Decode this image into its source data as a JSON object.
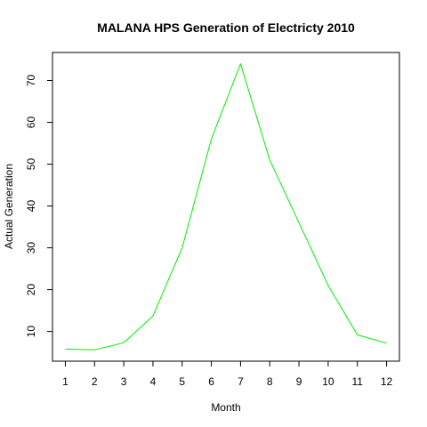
{
  "chart_data": {
    "type": "line",
    "title": "MALANA  HPS Generation of Electricty 2010",
    "xlabel": "Month",
    "ylabel": "Actual Generation",
    "x": [
      1,
      2,
      3,
      4,
      5,
      6,
      7,
      8,
      9,
      10,
      11,
      12
    ],
    "series": [
      {
        "values": [
          5.8,
          5.6,
          7.3,
          13.7,
          30.0,
          56.0,
          74.0,
          51.0,
          36.0,
          21.0,
          9.2,
          7.2
        ],
        "color": "#00ee00"
      }
    ],
    "xticks": [
      1,
      2,
      3,
      4,
      5,
      6,
      7,
      8,
      9,
      10,
      11,
      12
    ],
    "xtick_labels": [
      "1",
      "2",
      "3",
      "4",
      "5",
      "6",
      "7",
      "8",
      "9",
      "10",
      "11",
      "12"
    ],
    "yticks": [
      10,
      20,
      30,
      40,
      50,
      60,
      70
    ],
    "ytick_labels": [
      "10",
      "20",
      "30",
      "40",
      "50",
      "60",
      "70"
    ],
    "xlim": [
      0.56,
      12.44
    ],
    "ylim": [
      2.9,
      76.7
    ],
    "grid": false,
    "legend": "none"
  }
}
